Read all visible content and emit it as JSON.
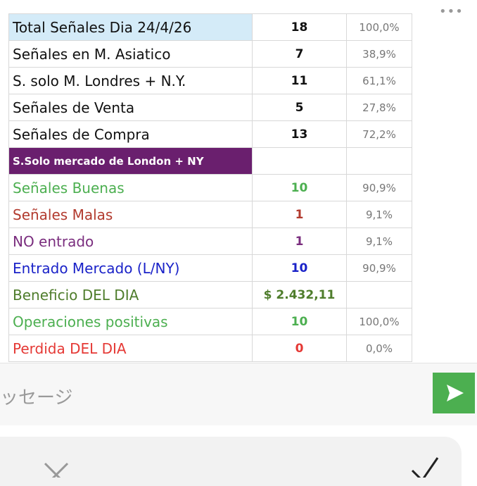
{
  "table": {
    "rows": [
      {
        "label": "Total Señales Dia 24/4/26",
        "value": "18",
        "percent": "100,0%",
        "color": "#111111",
        "highlight": "#d4ebf8"
      },
      {
        "label": "Señales en M. Asiatico",
        "value": "7",
        "percent": "38,9%",
        "color": "#111111"
      },
      {
        "label": "S. solo M. Londres + N.Y.",
        "value": "11",
        "percent": "61,1%",
        "color": "#111111"
      },
      {
        "label": "Señales de Venta",
        "value": "5",
        "percent": "27,8%",
        "color": "#111111"
      },
      {
        "label": "Señales de Compra",
        "value": "13",
        "percent": "72,2%",
        "color": "#111111"
      },
      {
        "label": "S.Solo mercado de London + NY",
        "color": "#ffffff",
        "highlight": "#6a1f6e",
        "small": true
      },
      {
        "label": "Señales Buenas",
        "value": "10",
        "percent": "90,9%",
        "color": "#4caf50"
      },
      {
        "label": "Señales Malas",
        "value": "1",
        "percent": "9,1%",
        "color": "#b23a2e"
      },
      {
        "label": "NO entrado",
        "value": "1",
        "percent": "9,1%",
        "color": "#7a2d7e"
      },
      {
        "label": "Entrado  Mercado (L/NY)",
        "value": "10",
        "percent": "90,9%",
        "color": "#1a22c8"
      },
      {
        "label": "Beneficio  DEL DIA",
        "value": "$ 2.432,11",
        "color": "#4f7d2c"
      },
      {
        "label": "Operaciones positivas",
        "value": "10",
        "percent": "100,0%",
        "color": "#4caf50"
      },
      {
        "label": "Perdida  DEL DIA",
        "value": "0",
        "percent": "0,0%",
        "color": "#e53935"
      }
    ]
  },
  "input": {
    "placeholder": "ッセージ"
  }
}
